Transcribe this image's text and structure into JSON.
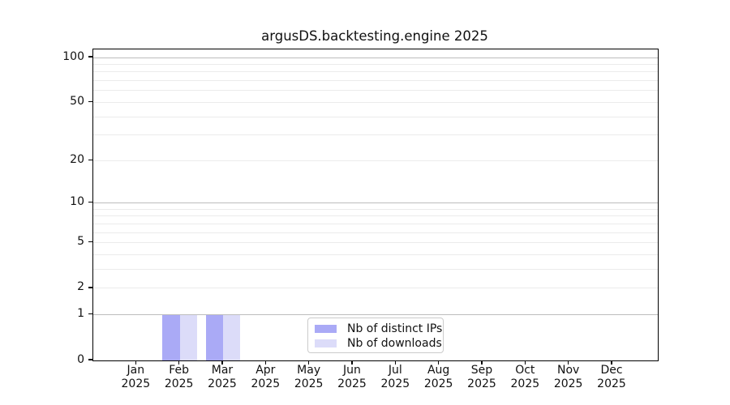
{
  "title": "argusDS.backtesting.engine 2025",
  "legend": {
    "items": [
      {
        "label": "Nb of distinct IPs",
        "color": "#aaaaf6"
      },
      {
        "label": "Nb of downloads",
        "color": "#dcdcf9"
      }
    ]
  },
  "chart_data": {
    "type": "bar",
    "title": "argusDS.backtesting.engine 2025",
    "categories": [
      "Jan 2025",
      "Feb 2025",
      "Mar 2025",
      "Apr 2025",
      "May 2025",
      "Jun 2025",
      "Jul 2025",
      "Aug 2025",
      "Sep 2025",
      "Oct 2025",
      "Nov 2025",
      "Dec 2025"
    ],
    "month_line1": [
      "Jan",
      "Feb",
      "Mar",
      "Apr",
      "May",
      "Jun",
      "Jul",
      "Aug",
      "Sep",
      "Oct",
      "Nov",
      "Dec"
    ],
    "month_line2": "2025",
    "series": [
      {
        "name": "Nb of distinct IPs",
        "color": "#aaaaf6",
        "values": [
          0,
          1,
          1,
          0,
          0,
          0,
          0,
          0,
          0,
          0,
          0,
          0
        ]
      },
      {
        "name": "Nb of downloads",
        "color": "#dcdcf9",
        "values": [
          0,
          1,
          1,
          0,
          0,
          0,
          0,
          0,
          0,
          0,
          0,
          0
        ]
      }
    ],
    "xlabel": "",
    "ylabel": "",
    "y_scale": "log1p",
    "ylim": [
      0,
      113
    ],
    "y_tick_values": [
      100,
      50,
      20,
      10,
      5,
      2,
      1,
      0
    ],
    "y_major_gridlines": [
      1,
      10,
      100
    ],
    "y_minor_gridlines": [
      2,
      3,
      4,
      5,
      6,
      7,
      8,
      9,
      20,
      30,
      40,
      50,
      60,
      70,
      80,
      90
    ],
    "grid": "horizontal only",
    "legend_position": "lower center inside axes",
    "bar_layout": "two series side by side, width 0.4 month each"
  },
  "colors": {
    "bar_distinct_ips": "#aaaaf6",
    "bar_downloads": "#dcdcf9",
    "grid_major": "#bdbdbd",
    "grid_minor": "#ebebeb",
    "spine": "#000000",
    "text": "#111111",
    "legend_border": "#cbcbcb"
  }
}
